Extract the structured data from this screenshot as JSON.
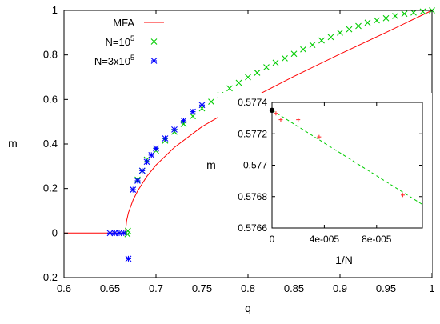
{
  "chart_data": [
    {
      "type": "scatter",
      "xlabel": "q",
      "ylabel": "m",
      "xlim": [
        0.6,
        1.0
      ],
      "ylim": [
        -0.2,
        1.0
      ],
      "xticks": [
        "0.6",
        "0.65",
        "0.7",
        "0.75",
        "0.8",
        "0.85",
        "0.9",
        "0.95",
        "1"
      ],
      "yticks": [
        "-0.2",
        "0",
        "0.2",
        "0.4",
        "0.6",
        "0.8",
        "1"
      ],
      "grid": false,
      "legend_position": "top-left",
      "series": [
        {
          "name": "MFA",
          "legend_base": "MFA",
          "legend_exp": "",
          "style": "line",
          "color": "#ff0000",
          "q_c": 0.6667,
          "x": [
            0.6,
            0.6667,
            0.668,
            0.67,
            0.675,
            0.68,
            0.69,
            0.7,
            0.72,
            0.75,
            0.8,
            0.85,
            0.9,
            0.95,
            1.0
          ],
          "y": [
            0.0,
            0.0,
            0.054,
            0.091,
            0.148,
            0.189,
            0.254,
            0.305,
            0.385,
            0.478,
            0.598,
            0.704,
            0.804,
            0.901,
            1.0
          ]
        },
        {
          "name": "N=10^5",
          "legend_base": "N=10",
          "legend_exp": "5",
          "style": "x",
          "color": "#00cc00",
          "x": [
            0.669,
            0.6695,
            0.68,
            0.685,
            0.69,
            0.7,
            0.71,
            0.72,
            0.73,
            0.74,
            0.75,
            0.76,
            0.77,
            0.78,
            0.79,
            0.8,
            0.81,
            0.82,
            0.83,
            0.84,
            0.85,
            0.86,
            0.87,
            0.88,
            0.89,
            0.9,
            0.91,
            0.92,
            0.93,
            0.94,
            0.95,
            0.96,
            0.97,
            0.98,
            0.99,
            1.0
          ],
          "y": [
            -0.005,
            0.01,
            0.24,
            0.28,
            0.33,
            0.37,
            0.415,
            0.455,
            0.49,
            0.525,
            0.56,
            0.59,
            0.62,
            0.65,
            0.675,
            0.7,
            0.72,
            0.745,
            0.765,
            0.785,
            0.805,
            0.825,
            0.845,
            0.865,
            0.88,
            0.9,
            0.915,
            0.93,
            0.945,
            0.955,
            0.965,
            0.975,
            0.985,
            0.99,
            0.995,
            1.0
          ]
        },
        {
          "name": "N=3x10^5",
          "legend_base": "N=3x10",
          "legend_exp": "5",
          "style": "star",
          "color": "#0000ff",
          "x": [
            0.65,
            0.655,
            0.66,
            0.665,
            0.67,
            0.675,
            0.68,
            0.685,
            0.69,
            0.695,
            0.7,
            0.71,
            0.72,
            0.73,
            0.74,
            0.75
          ],
          "y": [
            0.0,
            0.0,
            0.0,
            0.0,
            -0.115,
            0.195,
            0.235,
            0.28,
            0.32,
            0.35,
            0.38,
            0.425,
            0.465,
            0.505,
            0.545,
            0.575
          ]
        }
      ]
    },
    {
      "type": "scatter",
      "role": "inset",
      "xlabel": "1/N",
      "ylabel": "m",
      "xlim": [
        0,
        0.000115
      ],
      "ylim": [
        0.5766,
        0.5774
      ],
      "xticks": [
        "0",
        "4e-005",
        "8e-005"
      ],
      "xtick_values": [
        0,
        4e-05,
        8e-05
      ],
      "yticks": [
        "0.5766",
        "0.5768",
        "0.577",
        "0.5772",
        "0.5774"
      ],
      "grid": false,
      "series": [
        {
          "style": "plus",
          "color": "#ff3333",
          "x": [
            3e-06,
            6.7e-06,
            2e-05,
            3.6e-05,
            0.0001
          ],
          "y": [
            0.57733,
            0.57729,
            0.57729,
            0.57718,
            0.57681
          ]
        },
        {
          "style": "dashed-fit",
          "color": "#00cc00",
          "x": [
            0,
            0.000115
          ],
          "y": [
            0.57735,
            0.57675
          ]
        },
        {
          "style": "dot",
          "color": "#000000",
          "x": [
            0
          ],
          "y": [
            0.57735
          ]
        }
      ]
    }
  ]
}
